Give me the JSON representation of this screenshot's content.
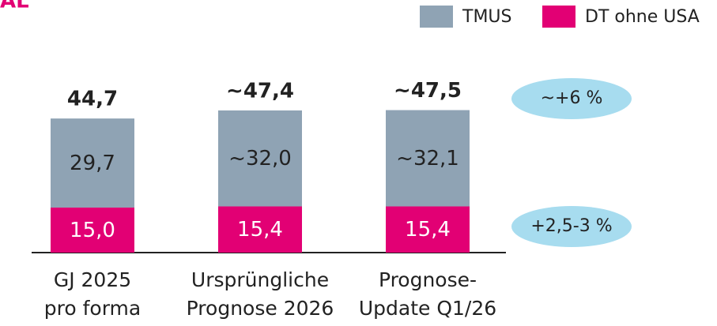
{
  "chart_data": {
    "type": "stacked_bar",
    "title_fragment": "AL",
    "categories": [
      [
        "GJ 2025",
        "pro forma"
      ],
      [
        "Ursprüngliche",
        "Prognose 2026"
      ],
      [
        "Prognose-",
        "Update Q1/26"
      ]
    ],
    "series": [
      {
        "name": "DT ohne USA",
        "color": "#e20074",
        "values": [
          15.0,
          15.4,
          15.4
        ],
        "value_labels": [
          "15,0",
          "15,4",
          "15,4"
        ],
        "label_color": "#ffffff"
      },
      {
        "name": "TMUS",
        "color": "#8fa3b4",
        "values": [
          29.7,
          32.0,
          32.1
        ],
        "value_labels": [
          "29,7",
          "~32,0",
          "~32,1"
        ],
        "label_color": "#222222"
      }
    ],
    "total_labels": [
      "44,7",
      "~47,4",
      "~47,5"
    ],
    "annotations": [
      "~+6 %",
      "+2,5-3 %"
    ],
    "legend_position": "top-right"
  }
}
